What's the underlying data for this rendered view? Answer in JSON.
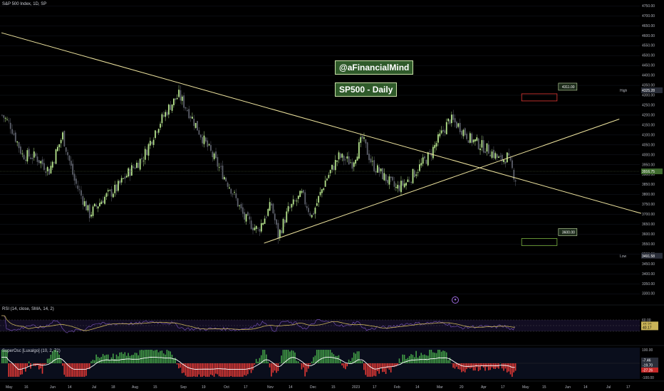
{
  "header": {
    "symbol": "S&P 500 Index, 1D, SP",
    "rsi_label": "RSI (14, close, SMA, 14, 2)",
    "osc_label": "SuperOsc [Luxalgo] (10, 2, 72)"
  },
  "annotations": {
    "brand": "@aFinancialMind",
    "title": "SP500 - Daily",
    "target_high": "4311.00",
    "target_low": "3600.00",
    "high_tag": "High",
    "high_value": "4325.28",
    "low_tag": "Low",
    "low_value": "3491.58",
    "last_price": "3916.75",
    "rsi_a": "40.32",
    "rsi_b": "40.17",
    "osc_a": "-7.46",
    "osc_b": "-19.70",
    "osc_c": "-27.26"
  },
  "colors": {
    "background": "#000000",
    "up_candle": "#b5e48c",
    "down_candle": "#5d606b",
    "trendline": "#f0e6a0",
    "target_high_box": "#e53935",
    "target_low_box": "#7cb342",
    "rsi_line": "#7e57c2",
    "rsi_sma": "#c9b458",
    "osc_up": "#43a047",
    "osc_down": "#e53935",
    "osc_signal": "#ffffff"
  },
  "chart_data": {
    "type": "candlestick",
    "title": "S&P 500 Index, 1D, SP",
    "ylim": [
      3240,
      4780
    ],
    "y_ticks": [
      3300,
      3350,
      3400,
      3450,
      3500,
      3550,
      3600,
      3650,
      3700,
      3750,
      3800,
      3850,
      3900,
      3950,
      4000,
      4050,
      4100,
      4150,
      4200,
      4250,
      4300,
      4350,
      4400,
      4450,
      4500,
      4550,
      4600,
      4650,
      4700,
      4750
    ],
    "x_ticks": [
      "May",
      "16",
      "Jun",
      "14",
      "Jul",
      "18",
      "Aug",
      "15",
      "Sep",
      "19",
      "Oct",
      "17",
      "Nov",
      "14",
      "Dec",
      "15",
      "2023",
      "17",
      "Feb",
      "14",
      "Mar",
      "20",
      "Apr",
      "17",
      "May",
      "15",
      "Jun",
      "14",
      "Jul",
      "17"
    ],
    "price_anchors": [
      [
        0,
        4200
      ],
      [
        5,
        4150
      ],
      [
        12,
        4000
      ],
      [
        20,
        3990
      ],
      [
        28,
        3920
      ],
      [
        36,
        4100
      ],
      [
        43,
        3870
      ],
      [
        52,
        3700
      ],
      [
        60,
        3780
      ],
      [
        68,
        3830
      ],
      [
        76,
        3920
      ],
      [
        84,
        3990
      ],
      [
        92,
        4140
      ],
      [
        100,
        4250
      ],
      [
        105,
        4300
      ],
      [
        112,
        4200
      ],
      [
        120,
        4070
      ],
      [
        128,
        3950
      ],
      [
        136,
        3830
      ],
      [
        144,
        3680
      ],
      [
        152,
        3620
      ],
      [
        160,
        3750
      ],
      [
        164,
        3590
      ],
      [
        170,
        3720
      ],
      [
        178,
        3800
      ],
      [
        184,
        3690
      ],
      [
        192,
        3870
      ],
      [
        200,
        3990
      ],
      [
        208,
        3960
      ],
      [
        214,
        4080
      ],
      [
        220,
        3950
      ],
      [
        228,
        3880
      ],
      [
        234,
        3830
      ],
      [
        240,
        3860
      ],
      [
        248,
        3940
      ],
      [
        254,
        4000
      ],
      [
        260,
        4090
      ],
      [
        266,
        4180
      ],
      [
        272,
        4140
      ],
      [
        278,
        4080
      ],
      [
        284,
        4050
      ],
      [
        290,
        4020
      ],
      [
        296,
        3970
      ],
      [
        300,
        3990
      ],
      [
        305,
        3880
      ]
    ],
    "trendlines": [
      {
        "from": [
          0,
          4615
        ],
        "to": [
          380,
          3705
        ]
      },
      {
        "from": [
          156,
          3555
        ],
        "to": [
          367,
          4180
        ]
      }
    ],
    "targets": [
      {
        "label": "4311.00",
        "value": 4311,
        "x_range": [
          309,
          330
        ]
      },
      {
        "label": "3600.00",
        "value": 3600,
        "x_range": [
          309,
          330
        ]
      }
    ],
    "indicators": {
      "rsi": {
        "name": "RSI",
        "ylim": [
          0,
          100
        ],
        "levels": [
          30,
          50,
          70
        ],
        "last": 40.32,
        "sma_last": 40.17
      },
      "superosc": {
        "name": "SuperOsc",
        "ylim": [
          -100,
          100
        ],
        "last": -27.26
      }
    }
  }
}
